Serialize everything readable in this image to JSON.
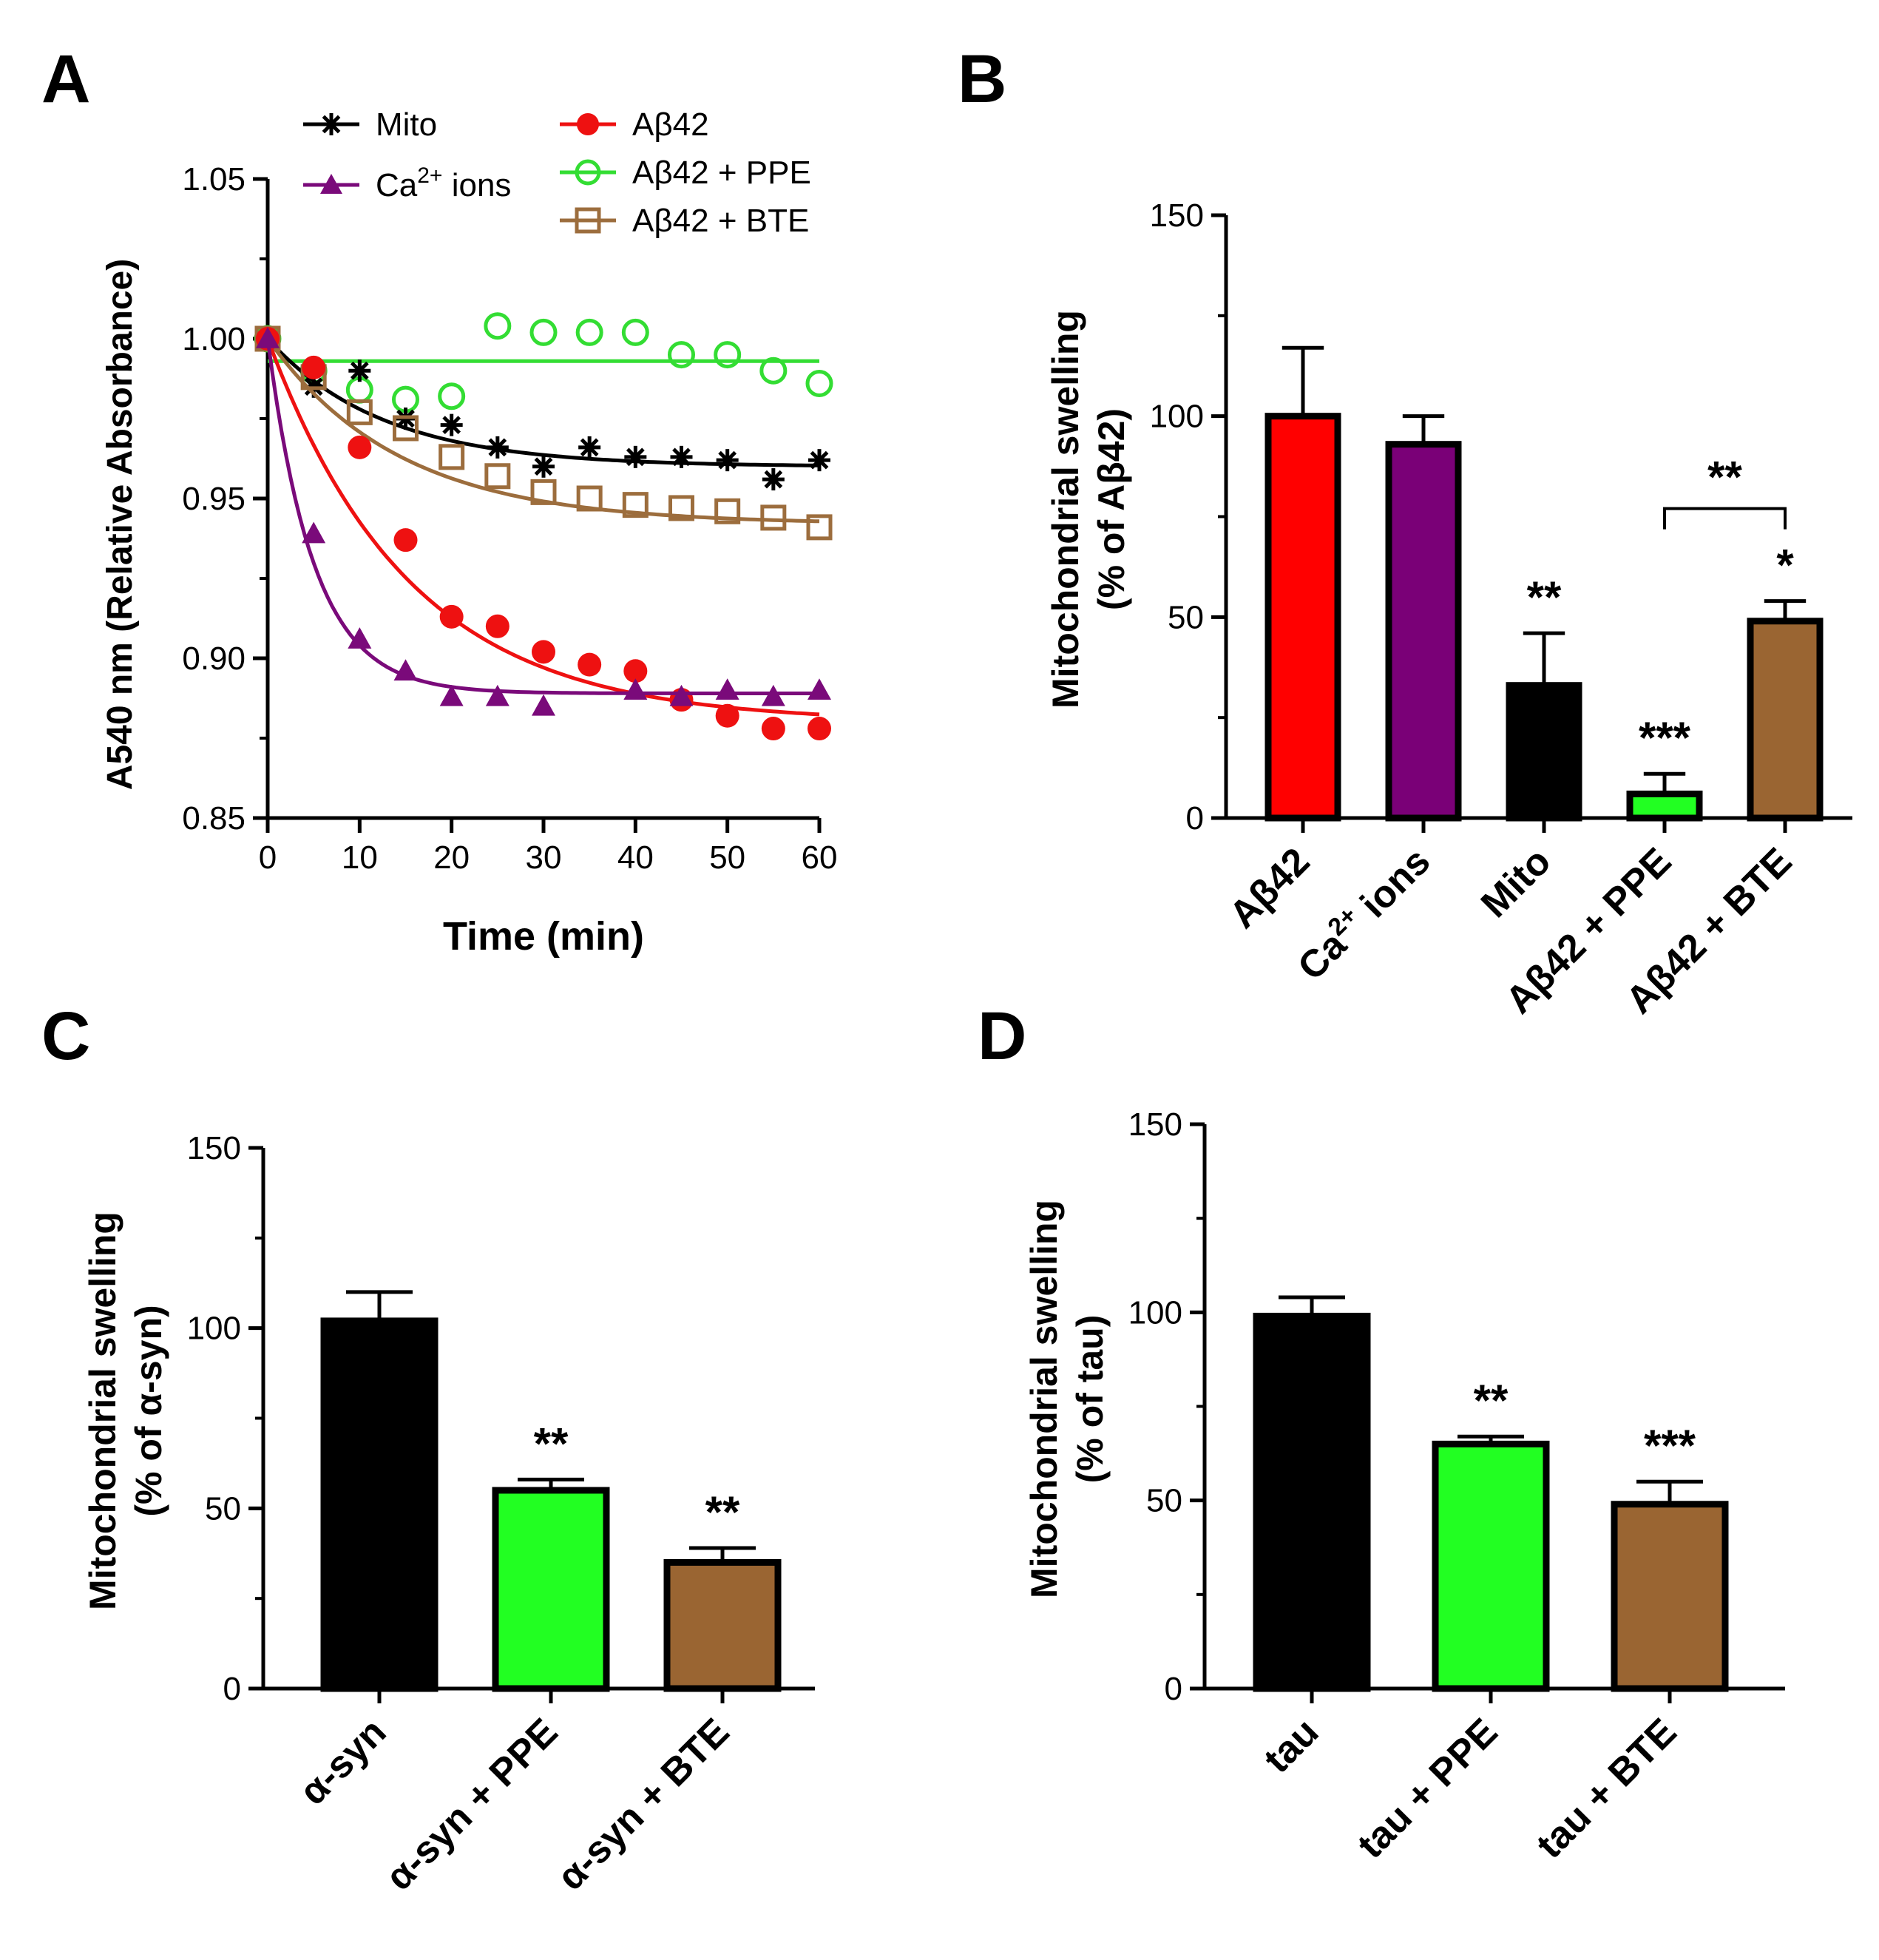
{
  "chart_data": [
    {
      "panel": "A",
      "type": "scatter",
      "xlabel": "Time (min)",
      "ylabel": "A540 nm (Relative Absorbance)",
      "xlim": [
        0,
        60
      ],
      "ylim": [
        0.85,
        1.05
      ],
      "x_ticks": [
        0,
        10,
        20,
        30,
        40,
        50,
        60
      ],
      "y_ticks": [
        0.85,
        0.9,
        0.95,
        1.0,
        1.05
      ],
      "y_tick_labels": [
        "0.85",
        "0.90",
        "0.95",
        "1.00",
        "1.05"
      ],
      "legend_position": "top",
      "series": [
        {
          "name": "Mito",
          "color": "#000000",
          "marker": "asterisk",
          "x": [
            0,
            5,
            10,
            15,
            20,
            25,
            30,
            35,
            40,
            45,
            50,
            55,
            60
          ],
          "y": [
            1.0,
            0.985,
            0.99,
            0.975,
            0.973,
            0.966,
            0.96,
            0.966,
            0.963,
            0.963,
            0.962,
            0.956,
            0.962
          ],
          "fit": {
            "plateau": 0.96,
            "k": 0.08
          }
        },
        {
          "name": "Ca",
          "sup": "2+",
          "suffix": " ions",
          "color": "#7a0a7a",
          "marker": "triangle",
          "x": [
            0,
            5,
            10,
            15,
            20,
            25,
            30,
            40,
            45,
            50,
            55,
            60
          ],
          "y": [
            1.0,
            0.939,
            0.906,
            0.896,
            0.888,
            0.888,
            0.885,
            0.89,
            0.888,
            0.89,
            0.888,
            0.89
          ],
          "fit": {
            "plateau": 0.889,
            "k": 0.2
          }
        },
        {
          "name": "Aβ42",
          "color": "#ee1111",
          "marker": "circle-filled",
          "x": [
            0,
            5,
            10,
            15,
            20,
            25,
            30,
            35,
            40,
            45,
            50,
            55,
            60
          ],
          "y": [
            1.0,
            0.991,
            0.966,
            0.937,
            0.913,
            0.91,
            0.902,
            0.898,
            0.896,
            0.887,
            0.882,
            0.878,
            0.878
          ],
          "fit": {
            "plateau": 0.88,
            "k": 0.065
          }
        },
        {
          "name": "Aβ42 + PPE",
          "color": "#33dd33",
          "marker": "circle-open",
          "x": [
            0,
            5,
            10,
            15,
            20,
            25,
            30,
            35,
            40,
            45,
            50,
            55,
            60
          ],
          "y": [
            1.0,
            0.99,
            0.984,
            0.981,
            0.982,
            1.004,
            1.002,
            1.002,
            1.002,
            0.995,
            0.995,
            0.99,
            0.986
          ],
          "fit": {
            "constant": 0.993
          }
        },
        {
          "name": "Aβ42 + BTE",
          "color": "#9c6d3d",
          "marker": "square-open",
          "x": [
            0,
            5,
            10,
            15,
            20,
            25,
            30,
            35,
            40,
            45,
            50,
            55,
            60
          ],
          "y": [
            1.0,
            0.988,
            0.977,
            0.972,
            0.963,
            0.957,
            0.952,
            0.95,
            0.948,
            0.947,
            0.946,
            0.944,
            0.941
          ],
          "fit": {
            "plateau": 0.942,
            "k": 0.07
          }
        }
      ]
    },
    {
      "panel": "B",
      "type": "bar",
      "ylabel": [
        "Mitochondrial swelling",
        "(% of Aβ42)"
      ],
      "ylim": [
        0,
        150
      ],
      "y_ticks": [
        0,
        50,
        100,
        150
      ],
      "categories": [
        "Aβ42",
        "Ca|2+| ions",
        "Mito",
        "Aβ42 + PPE",
        "Aβ42 + BTE"
      ],
      "values": [
        100,
        93,
        33,
        6,
        49
      ],
      "errors": [
        17,
        7,
        13,
        5,
        5
      ],
      "colors": [
        "#ff0000",
        "#7a0077",
        "#000000",
        "#22ff22",
        "#9a6532"
      ],
      "significance": [
        "",
        "",
        "**",
        "***",
        "*"
      ],
      "bracket": {
        "from": 3,
        "to": 4,
        "label": "**"
      }
    },
    {
      "panel": "C",
      "type": "bar",
      "ylabel": [
        "Mitochondrial swelling",
        "(% of α-syn)"
      ],
      "ylim": [
        0,
        150
      ],
      "y_ticks": [
        0,
        50,
        100,
        150
      ],
      "categories": [
        "α-syn",
        "α-syn + PPE",
        "α-syn + BTE"
      ],
      "values": [
        102,
        55,
        35
      ],
      "errors": [
        8,
        3,
        4
      ],
      "colors": [
        "#000000",
        "#22ff22",
        "#9a6532"
      ],
      "significance": [
        "",
        "**",
        "**"
      ]
    },
    {
      "panel": "D",
      "type": "bar",
      "ylabel": [
        "Mitochondrial swelling",
        "(% of tau)"
      ],
      "ylim": [
        0,
        150
      ],
      "y_ticks": [
        0,
        50,
        100,
        150
      ],
      "categories": [
        "tau",
        "tau + PPE",
        "tau + BTE"
      ],
      "values": [
        99,
        65,
        49
      ],
      "errors": [
        5,
        2,
        6
      ],
      "colors": [
        "#000000",
        "#22ff22",
        "#9a6532"
      ],
      "significance": [
        "",
        "**",
        "***"
      ]
    }
  ]
}
